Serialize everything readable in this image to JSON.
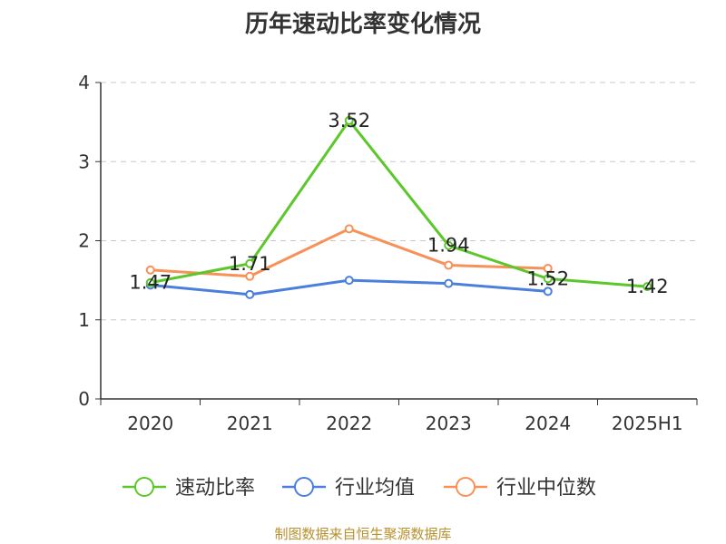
{
  "chart_data": {
    "type": "line",
    "title": "历年速动比率变化情况",
    "categories": [
      "2020",
      "2021",
      "2022",
      "2023",
      "2024",
      "2025H1"
    ],
    "ylim": [
      0,
      4
    ],
    "yticks": [
      "0",
      "1",
      "2",
      "3",
      "4"
    ],
    "grid": true,
    "legend_position": "bottom",
    "series": [
      {
        "name": "速动比率",
        "color": "#5cc72a",
        "values": [
          1.47,
          1.71,
          3.52,
          1.94,
          1.52,
          1.42
        ],
        "labels": [
          "1.47",
          "1.71",
          "3.52",
          "1.94",
          "1.52",
          "1.42"
        ]
      },
      {
        "name": "行业均值",
        "color": "#4a7fdb",
        "values": [
          1.44,
          1.32,
          1.5,
          1.46,
          1.36,
          null
        ]
      },
      {
        "name": "行业中位数",
        "color": "#f79158",
        "values": [
          1.63,
          1.55,
          2.15,
          1.69,
          1.65,
          null
        ]
      }
    ]
  },
  "source": "制图数据来自恒生聚源数据库"
}
